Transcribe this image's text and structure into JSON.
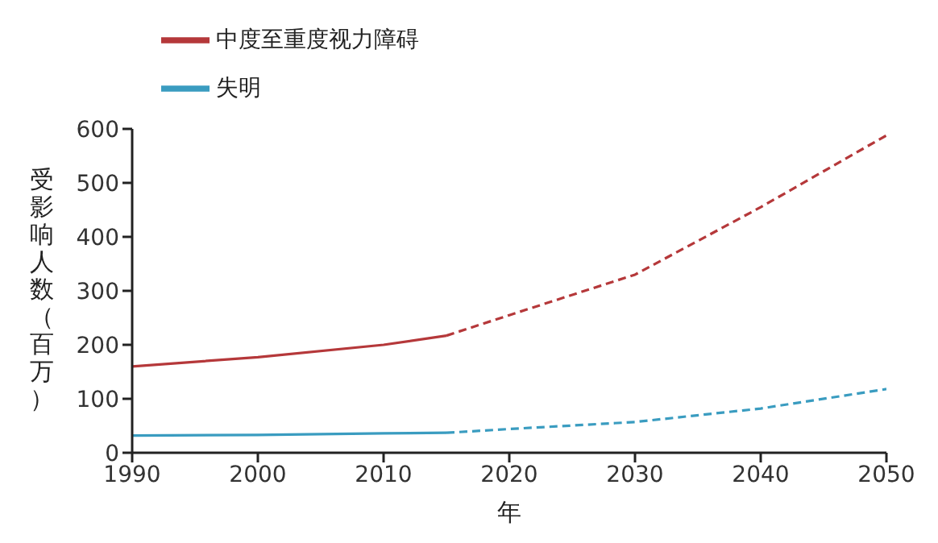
{
  "chart_data": {
    "type": "line",
    "xlabel": "年",
    "ylabel": "受影响人数（百万）",
    "xlim": [
      1990,
      2050
    ],
    "xticks": [
      1990,
      2000,
      2010,
      2020,
      2030,
      2040,
      2050
    ],
    "ylim": [
      0,
      600
    ],
    "yticks": [
      0,
      100,
      200,
      300,
      400,
      500,
      600
    ],
    "grid": false,
    "legend": "top left",
    "marker": "none",
    "series": [
      {
        "name": "中度至重度视力障碍",
        "color": "#b5383a",
        "line_style": "solid",
        "x": [
          1990,
          2000,
          2010,
          2015
        ],
        "values": [
          160,
          177,
          200,
          217
        ]
      },
      {
        "color": "#b5383a",
        "line_style": "dashed",
        "x": [
          2015,
          2020,
          2030,
          2040,
          2050
        ],
        "values": [
          217,
          255,
          330,
          455,
          588
        ]
      },
      {
        "name": "失明",
        "color": "#3a9cc0",
        "line_style": "solid",
        "x": [
          1990,
          2000,
          2010,
          2015
        ],
        "values": [
          32,
          33,
          36,
          37
        ]
      },
      {
        "color": "#3a9cc0",
        "line_style": "dashed",
        "x": [
          2015,
          2020,
          2030,
          2040,
          2050
        ],
        "values": [
          37,
          44,
          57,
          82,
          118
        ]
      }
    ]
  }
}
